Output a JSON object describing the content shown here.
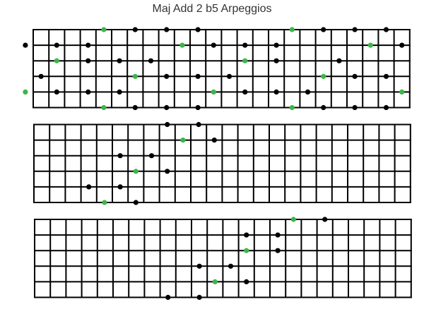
{
  "title": "Maj Add 2 b5 Arpeggios",
  "colors": {
    "root": "#3cb64a",
    "note": "#000000",
    "grid": "#000000"
  },
  "fretboards": [
    {
      "strings": 6,
      "frets": 24,
      "dots": [
        {
          "string": 0,
          "fret": 5,
          "type": "root"
        },
        {
          "string": 0,
          "fret": 7,
          "type": "note"
        },
        {
          "string": 0,
          "fret": 9,
          "type": "note"
        },
        {
          "string": 0,
          "fret": 11,
          "type": "note"
        },
        {
          "string": 0,
          "fret": 17,
          "type": "root"
        },
        {
          "string": 0,
          "fret": 19,
          "type": "note"
        },
        {
          "string": 0,
          "fret": 21,
          "type": "note"
        },
        {
          "string": 0,
          "fret": 23,
          "type": "note"
        },
        {
          "string": 1,
          "fret": 0,
          "type": "note"
        },
        {
          "string": 1,
          "fret": 2,
          "type": "note"
        },
        {
          "string": 1,
          "fret": 4,
          "type": "note"
        },
        {
          "string": 1,
          "fret": 10,
          "type": "root"
        },
        {
          "string": 1,
          "fret": 12,
          "type": "note"
        },
        {
          "string": 1,
          "fret": 14,
          "type": "note"
        },
        {
          "string": 1,
          "fret": 16,
          "type": "note"
        },
        {
          "string": 1,
          "fret": 22,
          "type": "root"
        },
        {
          "string": 1,
          "fret": 24,
          "type": "note"
        },
        {
          "string": 2,
          "fret": 2,
          "type": "root"
        },
        {
          "string": 2,
          "fret": 4,
          "type": "note"
        },
        {
          "string": 2,
          "fret": 6,
          "type": "note"
        },
        {
          "string": 2,
          "fret": 8,
          "type": "note"
        },
        {
          "string": 2,
          "fret": 14,
          "type": "root"
        },
        {
          "string": 2,
          "fret": 16,
          "type": "note"
        },
        {
          "string": 2,
          "fret": 20,
          "type": "note"
        },
        {
          "string": 3,
          "fret": 1,
          "type": "note"
        },
        {
          "string": 3,
          "fret": 7,
          "type": "root"
        },
        {
          "string": 3,
          "fret": 9,
          "type": "note"
        },
        {
          "string": 3,
          "fret": 11,
          "type": "note"
        },
        {
          "string": 3,
          "fret": 13,
          "type": "note"
        },
        {
          "string": 3,
          "fret": 19,
          "type": "root"
        },
        {
          "string": 3,
          "fret": 21,
          "type": "note"
        },
        {
          "string": 3,
          "fret": 23,
          "type": "note"
        },
        {
          "string": 4,
          "fret": 0,
          "type": "root"
        },
        {
          "string": 4,
          "fret": 2,
          "type": "note"
        },
        {
          "string": 4,
          "fret": 4,
          "type": "note"
        },
        {
          "string": 4,
          "fret": 6,
          "type": "note"
        },
        {
          "string": 4,
          "fret": 12,
          "type": "root"
        },
        {
          "string": 4,
          "fret": 14,
          "type": "note"
        },
        {
          "string": 4,
          "fret": 16,
          "type": "note"
        },
        {
          "string": 4,
          "fret": 18,
          "type": "note"
        },
        {
          "string": 4,
          "fret": 24,
          "type": "root"
        },
        {
          "string": 5,
          "fret": 5,
          "type": "root"
        },
        {
          "string": 5,
          "fret": 7,
          "type": "note"
        },
        {
          "string": 5,
          "fret": 9,
          "type": "note"
        },
        {
          "string": 5,
          "fret": 11,
          "type": "note"
        },
        {
          "string": 5,
          "fret": 17,
          "type": "root"
        },
        {
          "string": 5,
          "fret": 19,
          "type": "note"
        },
        {
          "string": 5,
          "fret": 21,
          "type": "note"
        },
        {
          "string": 5,
          "fret": 23,
          "type": "note"
        }
      ]
    },
    {
      "strings": 6,
      "frets": 24,
      "dots": [
        {
          "string": 0,
          "fret": 9,
          "type": "note"
        },
        {
          "string": 0,
          "fret": 11,
          "type": "note"
        },
        {
          "string": 1,
          "fret": 10,
          "type": "root"
        },
        {
          "string": 1,
          "fret": 12,
          "type": "note"
        },
        {
          "string": 2,
          "fret": 6,
          "type": "note"
        },
        {
          "string": 2,
          "fret": 8,
          "type": "note"
        },
        {
          "string": 3,
          "fret": 7,
          "type": "root"
        },
        {
          "string": 3,
          "fret": 9,
          "type": "note"
        },
        {
          "string": 4,
          "fret": 4,
          "type": "note"
        },
        {
          "string": 4,
          "fret": 6,
          "type": "note"
        },
        {
          "string": 5,
          "fret": 5,
          "type": "root"
        },
        {
          "string": 5,
          "fret": 7,
          "type": "note"
        }
      ]
    },
    {
      "strings": 6,
      "frets": 24,
      "dots": [
        {
          "string": 0,
          "fret": 17,
          "type": "root"
        },
        {
          "string": 0,
          "fret": 19,
          "type": "note"
        },
        {
          "string": 1,
          "fret": 14,
          "type": "note"
        },
        {
          "string": 1,
          "fret": 16,
          "type": "note"
        },
        {
          "string": 2,
          "fret": 14,
          "type": "root"
        },
        {
          "string": 2,
          "fret": 16,
          "type": "note"
        },
        {
          "string": 3,
          "fret": 11,
          "type": "note"
        },
        {
          "string": 3,
          "fret": 13,
          "type": "note"
        },
        {
          "string": 4,
          "fret": 12,
          "type": "root"
        },
        {
          "string": 4,
          "fret": 14,
          "type": "note"
        },
        {
          "string": 5,
          "fret": 9,
          "type": "note"
        },
        {
          "string": 5,
          "fret": 11,
          "type": "note"
        }
      ]
    }
  ]
}
